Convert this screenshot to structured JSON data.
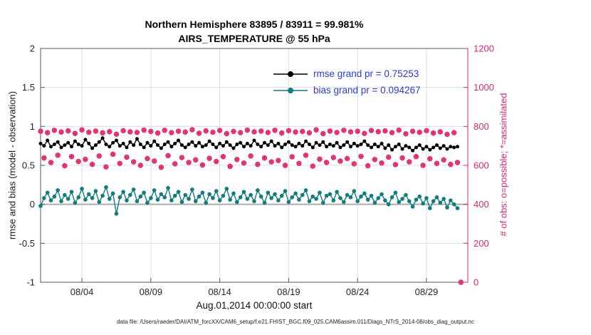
{
  "caption": "data file: /Users/raeder/DAI/ATM_forcXX/CAM6_setup/f.e21.FHIST_BGC.f09_025.CAM6assim.011/Diags_NTrS_2014-08/obs_diag_output.nc",
  "colors": {
    "rmse": "#000000",
    "bias": "#0f7d7d",
    "obs": "#e3256b",
    "legend_text": "#2639e6",
    "grid": "#dedede",
    "zero_line": "#b0b0b0",
    "axis_box": "#595959",
    "tick_text": "#262626"
  },
  "chart_data": {
    "type": "line",
    "title": {
      "line1": "Northern Hemisphere 83895 / 83911 = 99.981%",
      "line2": "AIRS_TEMPERATURE @ 55 hPa"
    },
    "axes": {
      "left_label": "rmse and bias (model - observation)",
      "right_label": "# of obs: o=possible; *=assimilated",
      "x_label": "Aug.01,2014 00:00:00 start",
      "y_left": {
        "min": -1,
        "max": 2,
        "ticks": [
          -1,
          -0.5,
          0,
          0.5,
          1,
          1.5,
          2
        ],
        "tick_labels": [
          "-1",
          "-0.5",
          "0",
          "0.5",
          "1",
          "1.5",
          "2"
        ]
      },
      "y_right": {
        "min": 0,
        "max": 1200,
        "ticks": [
          0,
          200,
          400,
          600,
          800,
          1000,
          1200
        ],
        "tick_labels": [
          "0",
          "200",
          "400",
          "600",
          "800",
          "1000",
          "1200"
        ]
      },
      "x": {
        "min_days": 0,
        "max_days": 31,
        "ticks_days": [
          3,
          8,
          13,
          18,
          23,
          28
        ],
        "tick_labels": [
          "08/04",
          "08/09",
          "08/14",
          "08/19",
          "08/24",
          "08/29"
        ]
      }
    },
    "legend": [
      {
        "series_key": "rmse",
        "label": "rmse grand pr = 0.75253"
      },
      {
        "series_key": "bias",
        "label": "bias grand pr = 0.094267"
      }
    ],
    "stats": {
      "rmse_grand_mean": 0.75253,
      "bias_grand_mean": 0.094267,
      "possible_total": 83911,
      "assimilated_total": 83895,
      "assimilated_pct": 99.981
    },
    "t_start_days": 0,
    "t_step_days": 0.25,
    "series": [
      {
        "name": "possible_obs",
        "axis": "right",
        "marker": "circle",
        "color_key": "obs",
        "z": 1,
        "values": [
          775,
          638,
          768,
          615,
          780,
          652,
          771,
          598,
          777,
          645,
          764,
          620,
          782,
          631,
          770,
          605,
          776,
          648,
          767,
          592,
          773,
          657,
          760,
          610,
          778,
          642,
          772,
          618,
          769,
          600,
          781,
          635,
          774,
          622,
          766,
          590,
          780,
          650,
          768,
          608,
          775,
          640,
          771,
          615,
          783,
          628,
          765,
          602,
          777,
          636,
          770,
          620,
          779,
          645,
          763,
          595,
          774,
          630,
          768,
          612,
          781,
          648,
          772,
          605,
          776,
          638,
          769,
          618,
          780,
          625,
          766,
          600,
          778,
          644,
          771,
          610,
          774,
          652,
          767,
          596,
          782,
          632,
          763,
          615,
          776,
          640,
          769,
          622,
          780,
          635,
          772,
          608,
          775,
          646,
          764,
          598,
          779,
          630,
          773,
          612,
          777,
          642,
          768,
          604,
          781,
          638,
          762,
          618,
          775,
          645,
          770,
          600,
          778,
          634,
          766,
          610,
          772,
          628,
          759,
          605,
          768,
          615,
          0
        ]
      },
      {
        "name": "assimilated_obs",
        "axis": "right",
        "marker": "asterisk",
        "color_key": "obs",
        "z": 2,
        "values_ref": "possible_obs"
      },
      {
        "name": "bias",
        "axis": "left",
        "style": "line",
        "marker_r": 2.8,
        "color_key": "bias",
        "z": 3,
        "values": [
          -0.02,
          0.08,
          0.15,
          0.05,
          0.1,
          0.18,
          0.04,
          0.12,
          0.07,
          0.16,
          0.02,
          0.09,
          0.2,
          0.06,
          0.13,
          0.08,
          0.17,
          0.03,
          0.11,
          0.22,
          0.07,
          0.14,
          -0.12,
          0.09,
          0.16,
          0.05,
          0.12,
          0.19,
          0.04,
          0.1,
          0.15,
          0.02,
          0.08,
          0.18,
          0.06,
          0.13,
          0.09,
          0.21,
          0.05,
          0.11,
          0.16,
          0.03,
          0.12,
          0.07,
          0.19,
          0.04,
          0.1,
          0.15,
          0.02,
          0.13,
          0.08,
          0.17,
          0.05,
          0.11,
          0.2,
          0.06,
          0.14,
          0.03,
          0.09,
          0.16,
          0.07,
          0.12,
          0.04,
          0.18,
          0.1,
          0.02,
          0.15,
          0.08,
          0.13,
          0.05,
          0.11,
          0.17,
          0.03,
          0.09,
          0.14,
          0.06,
          0.12,
          0.18,
          0.04,
          0.1,
          0.07,
          0.15,
          0.02,
          0.11,
          0.13,
          0.05,
          0.16,
          0.08,
          0.03,
          0.12,
          0.09,
          0.17,
          0.04,
          0.1,
          0.14,
          0.06,
          0.11,
          0.02,
          0.08,
          0.13,
          0.05,
          0.0,
          0.09,
          0.15,
          0.03,
          0.07,
          0.12,
          0.04,
          -0.03,
          0.06,
          0.1,
          0.01,
          0.08,
          -0.05,
          0.04,
          0.09,
          0.02,
          0.07,
          -0.04,
          0.05,
          0.0,
          -0.05
        ]
      },
      {
        "name": "rmse",
        "axis": "left",
        "style": "line",
        "marker_r": 2.5,
        "color_key": "rmse",
        "z": 4,
        "values": [
          0.78,
          0.75,
          0.82,
          0.74,
          0.77,
          0.8,
          0.73,
          0.76,
          0.79,
          0.74,
          0.81,
          0.77,
          0.75,
          0.83,
          0.78,
          0.72,
          0.76,
          0.8,
          0.85,
          0.77,
          0.74,
          0.79,
          0.82,
          0.75,
          0.78,
          0.73,
          0.8,
          0.76,
          0.84,
          0.77,
          0.73,
          0.79,
          0.75,
          0.81,
          0.76,
          0.72,
          0.77,
          0.8,
          0.74,
          0.78,
          0.82,
          0.76,
          0.73,
          0.77,
          0.8,
          0.75,
          0.79,
          0.74,
          0.76,
          0.81,
          0.77,
          0.73,
          0.78,
          0.75,
          0.8,
          0.76,
          0.72,
          0.77,
          0.79,
          0.74,
          0.78,
          0.75,
          0.82,
          0.77,
          0.74,
          0.79,
          0.76,
          0.81,
          0.75,
          0.78,
          0.73,
          0.77,
          0.8,
          0.76,
          0.74,
          0.78,
          0.75,
          0.81,
          0.77,
          0.73,
          0.79,
          0.76,
          0.8,
          0.74,
          0.77,
          0.75,
          0.79,
          0.73,
          0.76,
          0.8,
          0.74,
          0.78,
          0.75,
          0.77,
          0.81,
          0.76,
          0.73,
          0.77,
          0.74,
          0.78,
          0.72,
          0.76,
          0.7,
          0.74,
          0.77,
          0.71,
          0.75,
          0.73,
          0.69,
          0.73,
          0.76,
          0.71,
          0.74,
          0.7,
          0.73,
          0.76,
          0.72,
          0.75,
          0.71,
          0.74,
          0.73,
          0.74
        ]
      }
    ]
  }
}
